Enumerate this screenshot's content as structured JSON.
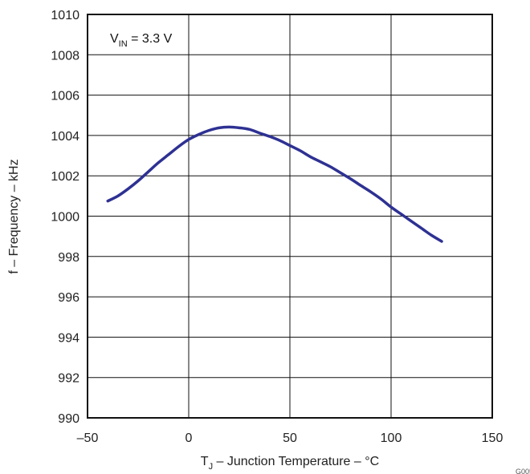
{
  "chart_data": {
    "type": "line",
    "xlabel": {
      "main": "T",
      "sub": "J",
      "rest": " – Junction Temperature – °C"
    },
    "ylabel": "f – Frequency – kHz",
    "xlim": [
      -50,
      150
    ],
    "ylim": [
      990,
      1010
    ],
    "xticks": [
      -50,
      0,
      50,
      100,
      150
    ],
    "xtick_labels": [
      "–50",
      "0",
      "50",
      "100",
      "150"
    ],
    "yticks": [
      990,
      992,
      994,
      996,
      998,
      1000,
      1002,
      1004,
      1006,
      1008,
      1010
    ],
    "ytick_labels": [
      "990",
      "992",
      "994",
      "996",
      "998",
      "1000",
      "1002",
      "1004",
      "1006",
      "1008",
      "1010"
    ],
    "grid": true,
    "annotation": {
      "main": "V",
      "sub": "IN",
      "rest": " = 3.3 V"
    },
    "corner_label": "G005",
    "series": [
      {
        "color": "#2e3192",
        "x": [
          -40,
          -35,
          -30,
          -25,
          -20,
          -15,
          -10,
          -5,
          0,
          5,
          10,
          15,
          20,
          25,
          30,
          35,
          40,
          45,
          50,
          55,
          60,
          65,
          70,
          75,
          80,
          85,
          90,
          95,
          100,
          105,
          110,
          115,
          120,
          125
        ],
        "y": [
          1000.75,
          1001.0,
          1001.35,
          1001.75,
          1002.2,
          1002.65,
          1003.05,
          1003.45,
          1003.8,
          1004.05,
          1004.25,
          1004.38,
          1004.42,
          1004.38,
          1004.3,
          1004.12,
          1003.95,
          1003.75,
          1003.5,
          1003.25,
          1002.95,
          1002.7,
          1002.45,
          1002.15,
          1001.85,
          1001.52,
          1001.2,
          1000.85,
          1000.45,
          1000.1,
          999.75,
          999.4,
          999.05,
          998.75
        ]
      }
    ]
  }
}
